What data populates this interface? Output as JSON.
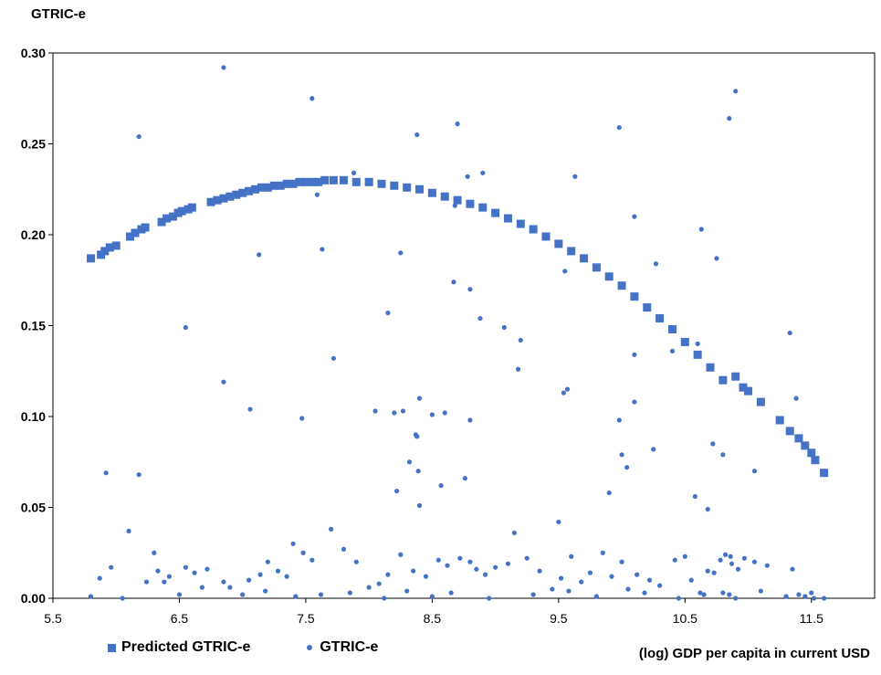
{
  "chart_data": {
    "type": "scatter",
    "ylabel": "GTRIC-e",
    "xlabel": "(log) GDP per capita in current USD",
    "xlim": [
      5.5,
      12.0
    ],
    "ylim": [
      0,
      0.3
    ],
    "x_ticks": [
      "5.5",
      "6.5",
      "7.5",
      "8.5",
      "9.5",
      "10.5",
      "11.5"
    ],
    "y_ticks": [
      "0.00",
      "0.05",
      "0.10",
      "0.15",
      "0.20",
      "0.25",
      "0.30"
    ],
    "legend": {
      "placement": "bottom-left"
    },
    "colors": {
      "series": "#4472c4"
    },
    "series": [
      {
        "name": "Predicted GTRIC-e",
        "marker": "square",
        "x": [
          5.8,
          5.88,
          5.91,
          5.95,
          6.0,
          6.11,
          6.15,
          6.2,
          6.23,
          6.36,
          6.4,
          6.45,
          6.49,
          6.52,
          6.57,
          6.6,
          6.75,
          6.8,
          6.85,
          6.9,
          6.95,
          7.0,
          7.05,
          7.1,
          7.15,
          7.2,
          7.25,
          7.3,
          7.35,
          7.4,
          7.45,
          7.5,
          7.55,
          7.6,
          7.65,
          7.72,
          7.8,
          7.9,
          8.0,
          8.1,
          8.2,
          8.3,
          8.4,
          8.5,
          8.6,
          8.7,
          8.8,
          8.9,
          9.0,
          9.1,
          9.2,
          9.3,
          9.4,
          9.5,
          9.6,
          9.7,
          9.8,
          9.9,
          10.0,
          10.1,
          10.2,
          10.3,
          10.4,
          10.5,
          10.6,
          10.7,
          10.8,
          10.9,
          10.96,
          11.0,
          11.1,
          11.25,
          11.33,
          11.4,
          11.45,
          11.5,
          11.53,
          11.6
        ],
        "y": [
          0.187,
          0.189,
          0.191,
          0.193,
          0.194,
          0.199,
          0.201,
          0.203,
          0.204,
          0.207,
          0.209,
          0.21,
          0.212,
          0.213,
          0.214,
          0.215,
          0.218,
          0.219,
          0.22,
          0.221,
          0.222,
          0.223,
          0.224,
          0.225,
          0.226,
          0.226,
          0.227,
          0.227,
          0.228,
          0.228,
          0.229,
          0.229,
          0.229,
          0.229,
          0.23,
          0.23,
          0.23,
          0.229,
          0.229,
          0.228,
          0.227,
          0.226,
          0.225,
          0.223,
          0.221,
          0.219,
          0.217,
          0.215,
          0.212,
          0.209,
          0.206,
          0.203,
          0.199,
          0.195,
          0.191,
          0.187,
          0.182,
          0.177,
          0.172,
          0.166,
          0.16,
          0.154,
          0.148,
          0.141,
          0.134,
          0.127,
          0.12,
          0.122,
          0.116,
          0.114,
          0.108,
          0.098,
          0.092,
          0.088,
          0.084,
          0.08,
          0.076,
          0.069
        ]
      },
      {
        "name": "GTRIC-e",
        "marker": "circle",
        "x": [
          6.85,
          7.55,
          10.9,
          10.85,
          6.18,
          8.7,
          8.38,
          9.98,
          8.9,
          8.78,
          7.88,
          9.63,
          8.68,
          10.1,
          7.59,
          10.63,
          7.63,
          7.13,
          10.4,
          10.75,
          9.98,
          8.25,
          8.67,
          8.8,
          9.55,
          6.55,
          8.15,
          8.88,
          9.07,
          9.18,
          10.27,
          10.1,
          10.6,
          11.33,
          9.2,
          7.72,
          6.85,
          8.4,
          9.57,
          9.54,
          11.38,
          8.27,
          8.2,
          10.1,
          7.06,
          8.5,
          8.05,
          8.6,
          8.8,
          8.38,
          7.47,
          10.0,
          8.32,
          10.25,
          10.8,
          10.04,
          11.05,
          10.72,
          6.18,
          10.58,
          8.22,
          8.39,
          8.76,
          8.37,
          5.92,
          6.3,
          8.57,
          10.68,
          8.4,
          10.86,
          9.9,
          6.1,
          5.96,
          9.5,
          5.87,
          6.24,
          6.33,
          6.42,
          6.55,
          6.62,
          6.72,
          6.85,
          6.9,
          7.05,
          7.14,
          7.2,
          7.28,
          7.35,
          7.4,
          7.48,
          7.55,
          7.7,
          7.8,
          7.9,
          8.0,
          8.08,
          8.15,
          8.25,
          8.35,
          8.45,
          8.55,
          8.62,
          8.72,
          8.8,
          8.85,
          8.92,
          9.0,
          9.1,
          9.15,
          9.25,
          9.35,
          9.45,
          9.52,
          9.6,
          9.68,
          9.75,
          9.85,
          9.92,
          10.0,
          10.05,
          10.12,
          10.22,
          10.3,
          10.42,
          10.5,
          10.55,
          10.62,
          10.68,
          10.73,
          10.78,
          10.82,
          10.87,
          10.92,
          10.97,
          11.05,
          11.15,
          11.35,
          11.45,
          11.5,
          11.6,
          5.8,
          6.05,
          6.38,
          6.5,
          6.68,
          7.0,
          7.18,
          7.42,
          7.62,
          7.85,
          8.12,
          8.3,
          8.5,
          8.65,
          8.95,
          9.3,
          9.58,
          9.8,
          10.18,
          10.45,
          10.65,
          10.8,
          10.85,
          10.9,
          11.1,
          11.3,
          11.4,
          11.52
        ],
        "y": [
          0.292,
          0.275,
          0.279,
          0.264,
          0.254,
          0.261,
          0.255,
          0.259,
          0.234,
          0.232,
          0.234,
          0.232,
          0.216,
          0.21,
          0.222,
          0.203,
          0.192,
          0.189,
          0.136,
          0.187,
          0.098,
          0.19,
          0.174,
          0.17,
          0.18,
          0.149,
          0.157,
          0.154,
          0.149,
          0.126,
          0.184,
          0.134,
          0.14,
          0.146,
          0.142,
          0.132,
          0.119,
          0.11,
          0.115,
          0.113,
          0.11,
          0.103,
          0.102,
          0.108,
          0.104,
          0.101,
          0.103,
          0.102,
          0.098,
          0.089,
          0.099,
          0.079,
          0.075,
          0.082,
          0.079,
          0.072,
          0.07,
          0.085,
          0.068,
          0.056,
          0.059,
          0.07,
          0.066,
          0.09,
          0.069,
          0.025,
          0.062,
          0.049,
          0.051,
          0.023,
          0.058,
          0.037,
          0.017,
          0.042,
          0.011,
          0.009,
          0.015,
          0.012,
          0.017,
          0.014,
          0.016,
          0.009,
          0.006,
          0.01,
          0.013,
          0.02,
          0.015,
          0.012,
          0.03,
          0.025,
          0.021,
          0.038,
          0.027,
          0.02,
          0.006,
          0.008,
          0.013,
          0.024,
          0.015,
          0.012,
          0.021,
          0.018,
          0.022,
          0.02,
          0.016,
          0.013,
          0.017,
          0.019,
          0.036,
          0.022,
          0.015,
          0.005,
          0.011,
          0.023,
          0.009,
          0.014,
          0.025,
          0.012,
          0.02,
          0.005,
          0.013,
          0.01,
          0.007,
          0.021,
          0.023,
          0.01,
          0.003,
          0.015,
          0.014,
          0.021,
          0.024,
          0.019,
          0.016,
          0.022,
          0.02,
          0.018,
          0.016,
          0.001,
          0.003,
          0.0,
          0.001,
          0.0,
          0.009,
          0.002,
          0.006,
          0.002,
          0.004,
          0.001,
          0.002,
          0.003,
          0.0,
          0.004,
          0.001,
          0.003,
          0.0,
          0.002,
          0.004,
          0.001,
          0.003,
          0.0,
          0.002,
          0.003,
          0.002,
          0.0,
          0.004,
          0.001,
          0.002,
          0.0
        ]
      }
    ]
  }
}
